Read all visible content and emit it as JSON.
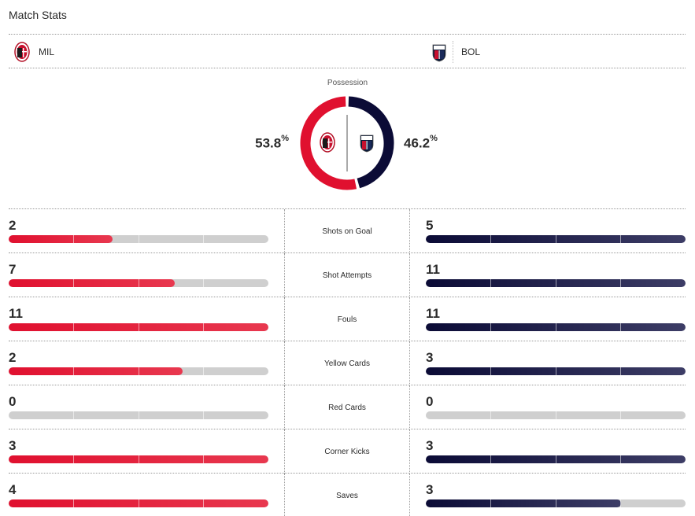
{
  "title": "Match Stats",
  "teams": {
    "home": {
      "abbr": "MIL",
      "crest_icon": "milan-crest-icon",
      "color": "#e0102f"
    },
    "away": {
      "abbr": "BOL",
      "crest_icon": "bologna-crest-icon",
      "color": "#0b0b36"
    }
  },
  "possession": {
    "label": "Possession",
    "home_value": "53.8",
    "away_value": "46.2",
    "unit": "%",
    "home_pct": 53.8,
    "away_pct": 46.2
  },
  "stats": [
    {
      "label": "Shots on Goal",
      "home": 2,
      "away": 5
    },
    {
      "label": "Shot Attempts",
      "home": 7,
      "away": 11
    },
    {
      "label": "Fouls",
      "home": 11,
      "away": 11
    },
    {
      "label": "Yellow Cards",
      "home": 2,
      "away": 3
    },
    {
      "label": "Red Cards",
      "home": 0,
      "away": 0
    },
    {
      "label": "Corner Kicks",
      "home": 3,
      "away": 3
    },
    {
      "label": "Saves",
      "home": 4,
      "away": 3
    }
  ],
  "bar_fill": {
    "home": [
      0.4,
      0.64,
      1.0,
      0.67,
      0.0,
      1.0,
      1.0
    ],
    "away": [
      1.0,
      1.0,
      1.0,
      1.0,
      0.0,
      1.0,
      0.75
    ]
  },
  "colors": {
    "track": "#cfcfcf",
    "home": "#e0102f",
    "away": "#0b0b36"
  }
}
